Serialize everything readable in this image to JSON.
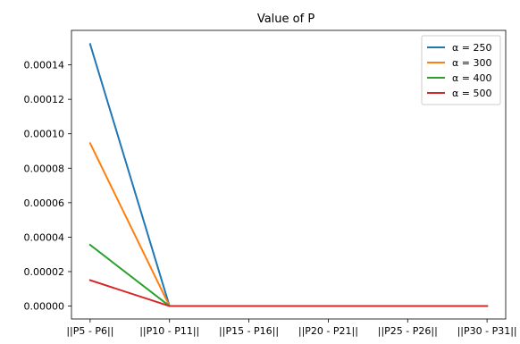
{
  "chart_data": {
    "type": "line",
    "title": "Value of P",
    "xlabel": "",
    "ylabel": "",
    "categories": [
      "||P5 - P6||",
      "||P10 - P11||",
      "||P15 - P16||",
      "||P20 - P21||",
      "||P25 - P26||",
      "||P30 - P31||"
    ],
    "x": [
      0,
      1,
      2,
      3,
      4,
      5
    ],
    "ylim": [
      -7.5e-06,
      0.00016
    ],
    "yticks": [
      0,
      2e-05,
      4e-05,
      6e-05,
      8e-05,
      0.0001,
      0.00012,
      0.00014
    ],
    "ytick_labels": [
      "0.00000",
      "0.00002",
      "0.00004",
      "0.00006",
      "0.00008",
      "0.00010",
      "0.00012",
      "0.00014"
    ],
    "grid": false,
    "legend_position": "upper right",
    "series": [
      {
        "name": "α = 250",
        "color": "#1f77b4",
        "values": [
          0.000152,
          0.0,
          0.0,
          0.0,
          0.0,
          0.0
        ]
      },
      {
        "name": "α = 300",
        "color": "#ff7f0e",
        "values": [
          9.45e-05,
          0.0,
          0.0,
          0.0,
          0.0,
          0.0
        ]
      },
      {
        "name": "α = 400",
        "color": "#2ca02c",
        "values": [
          3.55e-05,
          0.0,
          0.0,
          0.0,
          0.0,
          0.0
        ]
      },
      {
        "name": "α = 500",
        "color": "#d62728",
        "values": [
          1.5e-05,
          0.0,
          0.0,
          0.0,
          0.0,
          0.0
        ]
      }
    ]
  }
}
